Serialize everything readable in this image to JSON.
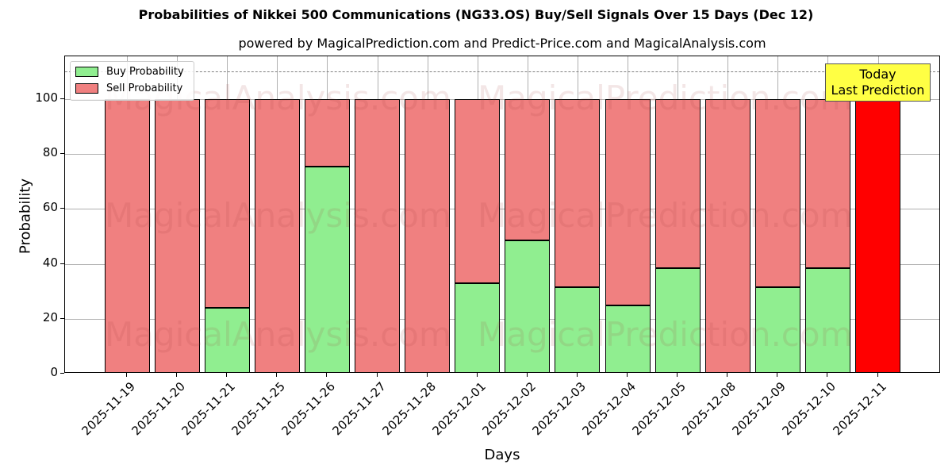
{
  "title": "Probabilities of Nikkei 500 Communications (NG33.OS) Buy/Sell Signals Over 15 Days (Dec 12)",
  "subtitle": "powered by MagicalPrediction.com and Predict-Price.com and MagicalAnalysis.com",
  "legend": {
    "buy_label": "Buy Probability",
    "sell_label": "Sell Probability"
  },
  "annotation": {
    "line1": "Today",
    "line2": "Last Prediction"
  },
  "watermarks": [
    "MagicalAnalysis.com",
    "MagicalPrediction.com"
  ],
  "colors": {
    "buy": "#90ee90",
    "sell": "#f08080",
    "today": "#ff0000",
    "annotation_bg": "#ffff44"
  },
  "chart_data": {
    "type": "bar",
    "stacked": true,
    "title": "Probabilities of Nikkei 500 Communications (NG33.OS) Buy/Sell Signals Over 15 Days (Dec 12)",
    "subtitle": "powered by MagicalPrediction.com and Predict-Price.com and MagicalAnalysis.com",
    "xlabel": "Days",
    "ylabel": "Probability",
    "ylim": [
      0,
      115
    ],
    "yticks": [
      0,
      20,
      40,
      60,
      80,
      100
    ],
    "reference_line": 110,
    "grid": true,
    "legend_position": "upper left",
    "categories": [
      "2025-11-19",
      "2025-11-20",
      "2025-11-21",
      "2025-11-25",
      "2025-11-26",
      "2025-11-27",
      "2025-11-28",
      "2025-12-01",
      "2025-12-02",
      "2025-12-03",
      "2025-12-04",
      "2025-12-05",
      "2025-12-08",
      "2025-12-09",
      "2025-12-10",
      "2025-12-11"
    ],
    "series": [
      {
        "name": "Buy Probability",
        "values": [
          0,
          0,
          24,
          0,
          75.5,
          0,
          0,
          33,
          48.5,
          31.5,
          24.8,
          38.5,
          0,
          31.5,
          38.5,
          0
        ]
      },
      {
        "name": "Sell Probability",
        "values": [
          100,
          100,
          76,
          100,
          24.5,
          100,
          100,
          67,
          51.5,
          68.5,
          75.2,
          61.5,
          100,
          68.5,
          61.5,
          100
        ]
      }
    ],
    "highlight": {
      "category": "2025-12-11",
      "label": "Today Last Prediction",
      "color": "#ff0000"
    }
  }
}
